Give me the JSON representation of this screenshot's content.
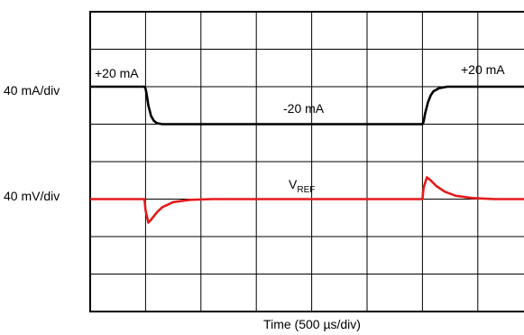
{
  "chart_data": {
    "type": "line",
    "title": "",
    "xlabel": "Time (500 µs/div)",
    "ylabel": "",
    "grid": true,
    "x_unit": "div",
    "xlim": [
      0,
      8
    ],
    "ylim_div": [
      0,
      8
    ],
    "scale_labels": [
      {
        "text": "40 mA/div",
        "level_div": 6.0
      },
      {
        "text": "40 mV/div",
        "level_div": 3.0
      }
    ],
    "series": [
      {
        "name": "",
        "color": "#000000",
        "points": [
          [
            0,
            6.0
          ],
          [
            0.98,
            6.0
          ],
          [
            1.0,
            5.95
          ],
          [
            1.02,
            5.8
          ],
          [
            1.05,
            5.5
          ],
          [
            1.1,
            5.22
          ],
          [
            1.15,
            5.09
          ],
          [
            1.2,
            5.03
          ],
          [
            1.3,
            5.0
          ],
          [
            6.0,
            5.0
          ],
          [
            6.02,
            5.06
          ],
          [
            6.05,
            5.3
          ],
          [
            6.1,
            5.58
          ],
          [
            6.15,
            5.77
          ],
          [
            6.2,
            5.88
          ],
          [
            6.3,
            5.96
          ],
          [
            6.45,
            6.0
          ],
          [
            8,
            6.0
          ]
        ]
      },
      {
        "name": "VREF",
        "color": "#e41a1c",
        "points": [
          [
            0,
            3.0
          ],
          [
            0.98,
            3.0
          ],
          [
            1.0,
            2.7
          ],
          [
            1.05,
            2.37
          ],
          [
            1.1,
            2.45
          ],
          [
            1.2,
            2.64
          ],
          [
            1.3,
            2.78
          ],
          [
            1.5,
            2.92
          ],
          [
            1.8,
            2.98
          ],
          [
            2.2,
            3.0
          ],
          [
            6.0,
            3.0
          ],
          [
            6.02,
            3.3
          ],
          [
            6.08,
            3.58
          ],
          [
            6.15,
            3.5
          ],
          [
            6.25,
            3.35
          ],
          [
            6.4,
            3.2
          ],
          [
            6.6,
            3.09
          ],
          [
            6.9,
            3.03
          ],
          [
            7.3,
            3.0
          ],
          [
            8,
            3.0
          ]
        ]
      }
    ],
    "annotations": {
      "plus20_left": "+20 mA",
      "minus20": "-20 mA",
      "plus20_right": "+20 mA",
      "vref_main": "V",
      "vref_sub": "REF"
    }
  }
}
